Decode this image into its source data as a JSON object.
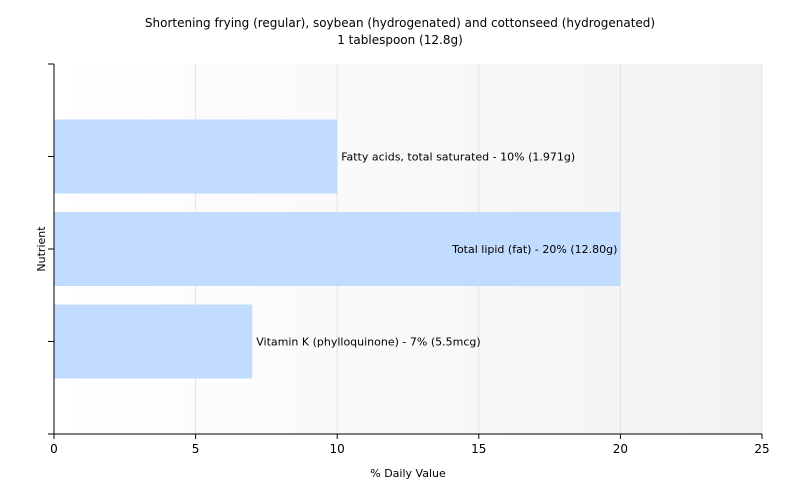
{
  "chart_data": {
    "type": "bar",
    "orientation": "horizontal",
    "title": "Shortening frying (regular), soybean (hydrogenated) and cottonseed (hydrogenated)",
    "subtitle": "1 tablespoon (12.8g)",
    "xlabel": "% Daily Value",
    "ylabel": "Nutrient",
    "xlim": [
      0,
      25
    ],
    "xticks": [
      0,
      5,
      10,
      15,
      20,
      25
    ],
    "grid": true,
    "legend": "none",
    "bar_color": "#c2dcff",
    "categories": [
      "Fatty acids, total saturated",
      "Total lipid (fat)",
      "Vitamin K (phylloquinone)"
    ],
    "values": [
      10,
      20,
      7
    ],
    "labels": [
      "Fatty acids, total saturated - 10% (1.971g)",
      "Total lipid (fat) - 20% (12.80g)",
      "Vitamin K (phylloquinone) - 7% (5.5mcg)"
    ]
  }
}
